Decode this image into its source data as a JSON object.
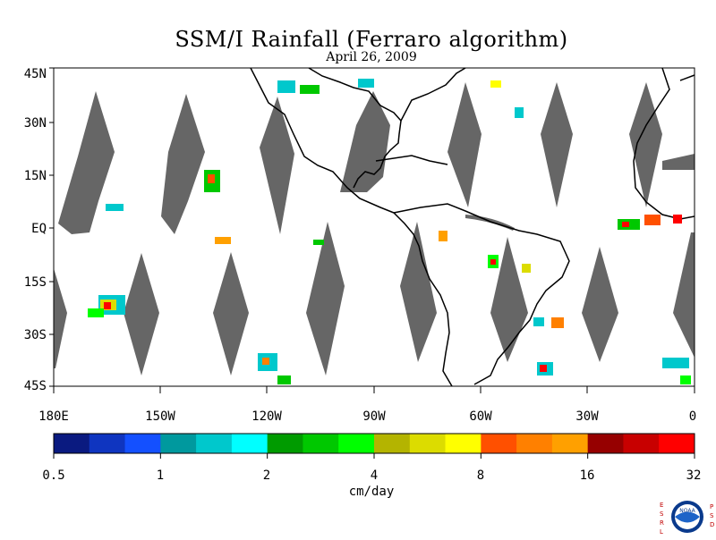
{
  "title": "SSM/I Rainfall (Ferraro algorithm)",
  "date": "April 26, 2009",
  "lat_labels": [
    "45N",
    "30N",
    "15N",
    "EQ",
    "15S",
    "30S",
    "45S"
  ],
  "lon_labels": [
    "180E",
    "150W",
    "120W",
    "90W",
    "60W",
    "30W",
    "0"
  ],
  "colorbar": {
    "units": "cm/day",
    "tick_labels": [
      "0.5",
      "1",
      "2",
      "4",
      "8",
      "16",
      "32"
    ],
    "colors": [
      "#0a1a80",
      "#0f35c0",
      "#1450ff",
      "#00999e",
      "#00c8cc",
      "#00ffff",
      "#009b00",
      "#00c800",
      "#00ff00",
      "#b4b400",
      "#dcdc00",
      "#ffff00",
      "#ff5000",
      "#ff8000",
      "#ffa000",
      "#960000",
      "#c80000",
      "#ff0000"
    ]
  },
  "colors": {
    "swath_gap": "#666666",
    "coastline": "#000000"
  },
  "logo": {
    "left_text": "ESRL",
    "right_text": "PSD",
    "badge_text": "NOAA"
  }
}
